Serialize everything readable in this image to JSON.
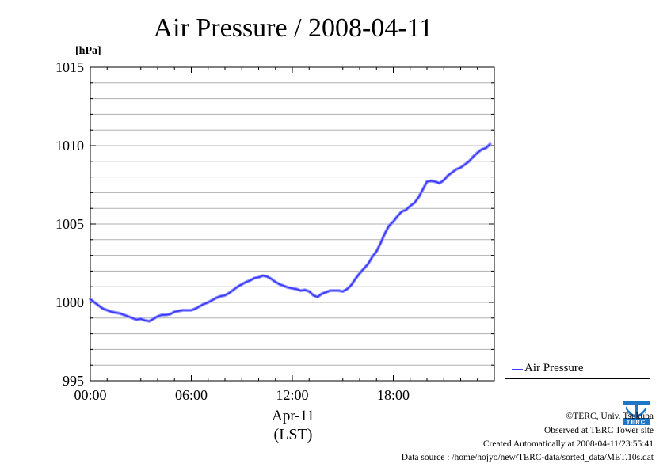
{
  "colors": {
    "series": "#3a3aff",
    "grid": "#b0b0b0",
    "axis": "#000000"
  },
  "chart_data": {
    "type": "line",
    "title": "Air Pressure / 2008-04-11",
    "ylabel": "[hPa]",
    "xlabel": "Apr-11",
    "xlabel2": "(LST)",
    "ylim": [
      995,
      1015
    ],
    "xlim": [
      0,
      24
    ],
    "yticks": [
      {
        "v": 995,
        "label": "995"
      },
      {
        "v": 1000,
        "label": "1000"
      },
      {
        "v": 1005,
        "label": "1005"
      },
      {
        "v": 1010,
        "label": "1010"
      },
      {
        "v": 1015,
        "label": "1015"
      }
    ],
    "xticks": [
      {
        "v": 0,
        "label": "00:00"
      },
      {
        "v": 6,
        "label": "06:00"
      },
      {
        "v": 12,
        "label": "12:00"
      },
      {
        "v": 18,
        "label": "18:00"
      }
    ],
    "grid": true,
    "legend": "right",
    "series": [
      {
        "name": "Air Pressure",
        "x": [
          0,
          0.25,
          0.5,
          0.75,
          1,
          1.25,
          1.5,
          1.75,
          2,
          2.25,
          2.5,
          2.75,
          3,
          3.25,
          3.5,
          3.75,
          4,
          4.25,
          4.5,
          4.75,
          5,
          5.25,
          5.5,
          5.75,
          6,
          6.25,
          6.5,
          6.75,
          7,
          7.25,
          7.5,
          7.75,
          8,
          8.25,
          8.5,
          8.75,
          9,
          9.25,
          9.5,
          9.75,
          10,
          10.25,
          10.5,
          10.75,
          11,
          11.25,
          11.5,
          11.75,
          12,
          12.25,
          12.5,
          12.75,
          13,
          13.25,
          13.5,
          13.75,
          14,
          14.25,
          14.5,
          14.75,
          15,
          15.25,
          15.5,
          15.75,
          16,
          16.25,
          16.5,
          16.75,
          17,
          17.25,
          17.5,
          17.75,
          18,
          18.25,
          18.5,
          18.75,
          19,
          19.25,
          19.5,
          19.75,
          20,
          20.25,
          20.5,
          20.75,
          21,
          21.25,
          21.5,
          21.75,
          22,
          22.25,
          22.5,
          22.75,
          23,
          23.25,
          23.5,
          23.75
        ],
        "y": [
          1000.2,
          1000.0,
          999.8,
          999.6,
          999.5,
          999.4,
          999.35,
          999.3,
          999.2,
          999.1,
          999.0,
          998.9,
          998.95,
          998.85,
          998.8,
          998.95,
          999.1,
          999.2,
          999.2,
          999.25,
          999.4,
          999.45,
          999.5,
          999.5,
          999.5,
          999.6,
          999.75,
          999.9,
          1000.0,
          1000.15,
          1000.3,
          1000.4,
          1000.45,
          1000.6,
          1000.8,
          1001.0,
          1001.15,
          1001.3,
          1001.4,
          1001.55,
          1001.6,
          1001.7,
          1001.65,
          1001.5,
          1001.3,
          1001.15,
          1001.05,
          1000.95,
          1000.9,
          1000.85,
          1000.75,
          1000.8,
          1000.7,
          1000.45,
          1000.35,
          1000.55,
          1000.65,
          1000.75,
          1000.75,
          1000.75,
          1000.7,
          1000.85,
          1001.1,
          1001.5,
          1001.85,
          1002.15,
          1002.45,
          1002.9,
          1003.25,
          1003.8,
          1004.4,
          1004.9,
          1005.15,
          1005.5,
          1005.8,
          1005.9,
          1006.15,
          1006.35,
          1006.7,
          1007.2,
          1007.7,
          1007.75,
          1007.7,
          1007.6,
          1007.8,
          1008.1,
          1008.3,
          1008.5,
          1008.6,
          1008.8,
          1009.0,
          1009.3,
          1009.55,
          1009.75,
          1009.85,
          1010.1
        ]
      }
    ]
  },
  "legend": {
    "label": "Air Pressure"
  },
  "footer": {
    "copyright": "©TERC, Univ. Tsukuba",
    "observed": "Observed at TERC Tower site",
    "created": "Created Automatically at 2008-04-11/23:55:41",
    "source": "Data source : /home/hojyo/new/TERC-data/sorted_data/MET.10s.dat",
    "logo_text": "TERC"
  }
}
